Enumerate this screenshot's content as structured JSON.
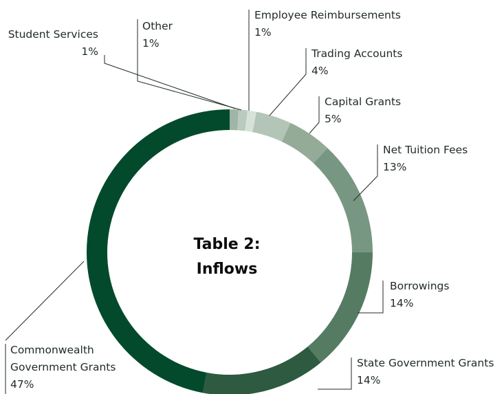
{
  "chart_data": {
    "type": "pie",
    "title": [
      "Table 2:",
      "Inflows"
    ],
    "categories": [
      "Student Services",
      "Other",
      "Employee Reimbursements",
      "Trading Accounts",
      "Capital Grants",
      "Net Tuition Fees",
      "Borrowings",
      "State Government Grants",
      "Commonwealth Government Grants"
    ],
    "values": [
      1,
      1,
      1,
      4,
      5,
      13,
      14,
      14,
      47
    ],
    "value_labels": [
      "1%",
      "1%",
      "1%",
      "4%",
      "5%",
      "13%",
      "14%",
      "14%",
      "47%"
    ],
    "colors": [
      "#9fb5a5",
      "#b9cbbd",
      "#d6e1d7",
      "#b3c5b6",
      "#93ab97",
      "#789783",
      "#567b63",
      "#2d5a41",
      "#024a2b"
    ]
  }
}
